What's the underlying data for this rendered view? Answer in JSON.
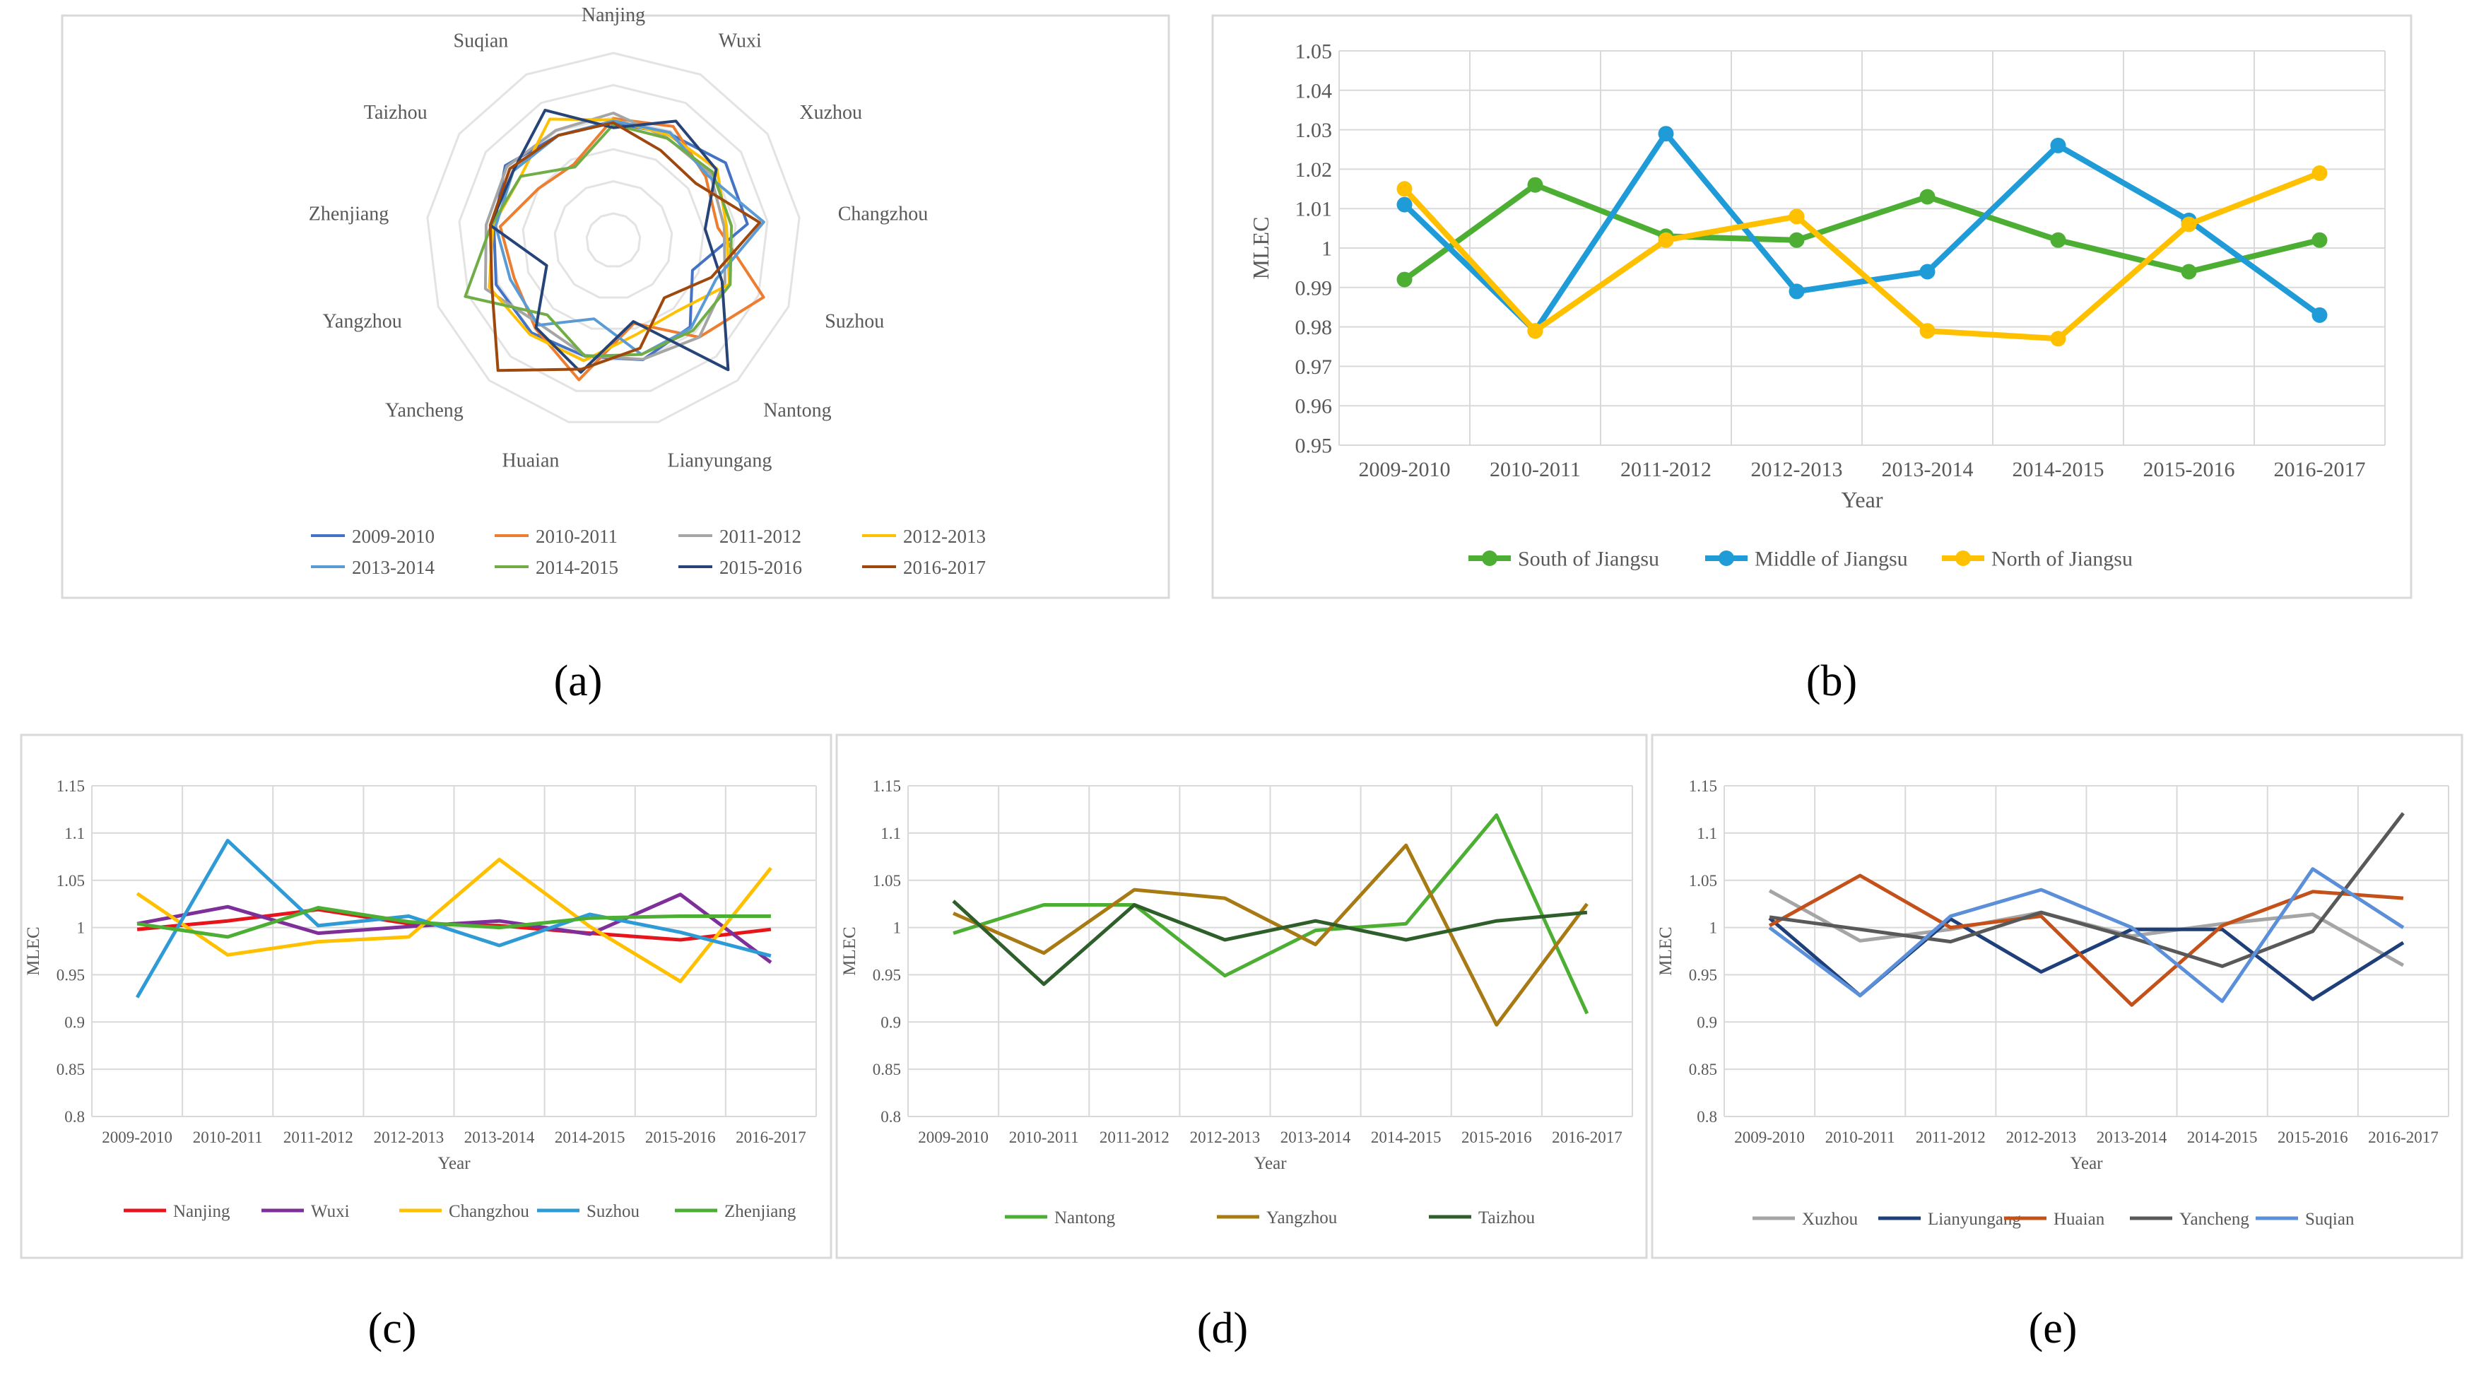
{
  "panel_labels": [
    "(a)",
    "(b)",
    "(c)",
    "(d)",
    "(e)"
  ],
  "chart_data": [
    {
      "panel": "(a)",
      "type": "radar",
      "axes": [
        "Nanjing",
        "Wuxi",
        "Xuzhou",
        "Changzhou",
        "Suzhou",
        "Nantong",
        "Lianyungang",
        "Huaian",
        "Yancheng",
        "Yangzhou",
        "Zhenjiang",
        "Taizhou",
        "Suqian"
      ],
      "rlim": [
        0.8,
        1.15
      ],
      "grid": true,
      "legend_position": "bottom",
      "series": [
        {
          "name": "2009-2010",
          "color": "#4472C4",
          "values": [
            0.998,
            1.004,
            1.039,
            1.036,
            0.926,
            0.994,
            1.01,
            1.002,
            1.011,
            1.015,
            1.004,
            1.028,
            1.0
          ]
        },
        {
          "name": "2010-2011",
          "color": "#ED7D31",
          "values": [
            1.007,
            1.022,
            0.986,
            0.971,
            1.092,
            1.024,
            0.928,
            1.055,
            0.998,
            0.973,
            0.99,
            0.94,
            0.928
          ]
        },
        {
          "name": "2011-2012",
          "color": "#A5A5A5",
          "values": [
            1.019,
            0.994,
            0.998,
            0.985,
            1.002,
            1.024,
            1.009,
            1.0,
            0.985,
            1.04,
            1.021,
            1.024,
            1.012
          ]
        },
        {
          "name": "2012-2013",
          "color": "#FFC000",
          "values": [
            1.004,
            1.001,
            1.016,
            0.99,
            1.012,
            0.949,
            0.953,
            1.012,
            1.016,
            1.031,
            1.006,
            0.987,
            1.04
          ]
        },
        {
          "name": "2013-2014",
          "color": "#5B9BD5",
          "values": [
            1.002,
            1.007,
            0.991,
            1.072,
            0.981,
            0.997,
            0.998,
            0.918,
            0.989,
            0.982,
            1.0,
            1.007,
            1.0
          ]
        },
        {
          "name": "2014-2015",
          "color": "#70AD47",
          "values": [
            0.994,
            0.993,
            1.004,
            1.001,
            1.014,
            1.004,
            0.998,
            1.002,
            0.959,
            1.087,
            1.01,
            0.987,
            0.922
          ]
        },
        {
          "name": "2015-2016",
          "color": "#264478",
          "values": [
            0.987,
            1.035,
            1.014,
            0.943,
            0.995,
            1.119,
            0.924,
            1.038,
            0.996,
            0.897,
            1.012,
            1.007,
            1.062
          ]
        },
        {
          "name": "2016-2017",
          "color": "#9E480E",
          "values": [
            0.998,
            0.963,
            0.96,
            1.063,
            0.97,
            0.909,
            0.984,
            1.031,
            1.121,
            1.025,
            1.012,
            1.016,
            1.0
          ]
        }
      ]
    },
    {
      "panel": "(b)",
      "type": "line",
      "categories": [
        "2009-2010",
        "2010-2011",
        "2011-2012",
        "2012-2013",
        "2013-2014",
        "2014-2015",
        "2015-2016",
        "2016-2017"
      ],
      "xlabel": "Year",
      "ylabel": "MLEC",
      "ylim": [
        0.95,
        1.05
      ],
      "yticks": [
        "0.95",
        "0.96",
        "0.97",
        "0.98",
        "0.99",
        "1",
        "1.01",
        "1.02",
        "1.03",
        "1.04",
        "1.05"
      ],
      "grid": true,
      "legend_position": "bottom",
      "series": [
        {
          "name": "South of Jiangsu",
          "color": "#4CAF34",
          "values": [
            0.992,
            1.016,
            1.003,
            1.002,
            1.013,
            1.002,
            0.994,
            1.002
          ]
        },
        {
          "name": "Middle of Jiangsu",
          "color": "#1F9BD8",
          "values": [
            1.011,
            0.979,
            1.029,
            0.989,
            0.994,
            1.026,
            1.007,
            0.983
          ]
        },
        {
          "name": "North of Jiangsu",
          "color": "#FFC000",
          "values": [
            1.015,
            0.979,
            1.002,
            1.008,
            0.979,
            0.977,
            1.006,
            1.019
          ]
        }
      ]
    },
    {
      "panel": "(c)",
      "type": "line",
      "categories": [
        "2009-2010",
        "2010-2011",
        "2011-2012",
        "2012-2013",
        "2013-2014",
        "2014-2015",
        "2015-2016",
        "2016-2017"
      ],
      "xlabel": "Year",
      "ylabel": "MLEC",
      "ylim": [
        0.8,
        1.15
      ],
      "yticks": [
        "0.8",
        "0.85",
        "0.9",
        "0.95",
        "1",
        "1.05",
        "1.1",
        "1.15"
      ],
      "grid": true,
      "legend_position": "bottom",
      "series": [
        {
          "name": "Nanjing",
          "color": "#E8141B",
          "values": [
            0.998,
            1.007,
            1.019,
            1.004,
            1.002,
            0.994,
            0.987,
            0.998
          ]
        },
        {
          "name": "Wuxi",
          "color": "#7E2F99",
          "values": [
            1.004,
            1.022,
            0.994,
            1.001,
            1.007,
            0.993,
            1.035,
            0.963
          ]
        },
        {
          "name": "Changzhou",
          "color": "#FFC000",
          "values": [
            1.036,
            0.971,
            0.985,
            0.99,
            1.072,
            1.001,
            0.943,
            1.063
          ]
        },
        {
          "name": "Suzhou",
          "color": "#2F9BD6",
          "values": [
            0.926,
            1.092,
            1.002,
            1.012,
            0.981,
            1.014,
            0.995,
            0.97
          ]
        },
        {
          "name": "Zhenjiang",
          "color": "#4CAF34",
          "values": [
            1.004,
            0.99,
            1.021,
            1.006,
            1.0,
            1.01,
            1.012,
            1.012
          ]
        }
      ]
    },
    {
      "panel": "(d)",
      "type": "line",
      "categories": [
        "2009-2010",
        "2010-2011",
        "2011-2012",
        "2012-2013",
        "2013-2014",
        "2014-2015",
        "2015-2016",
        "2016-2017"
      ],
      "xlabel": "Year",
      "ylabel": "MLEC",
      "ylim": [
        0.8,
        1.15
      ],
      "yticks": [
        "0.8",
        "0.85",
        "0.9",
        "0.95",
        "1",
        "1.05",
        "1.1",
        "1.15"
      ],
      "grid": true,
      "legend_position": "bottom",
      "series": [
        {
          "name": "Nantong",
          "color": "#4CAF34",
          "values": [
            0.994,
            1.024,
            1.024,
            0.949,
            0.997,
            1.004,
            1.119,
            0.909
          ]
        },
        {
          "name": "Yangzhou",
          "color": "#A87A14",
          "values": [
            1.015,
            0.973,
            1.04,
            1.031,
            0.982,
            1.087,
            0.897,
            1.025
          ]
        },
        {
          "name": "Taizhou",
          "color": "#2E5F2A",
          "values": [
            1.028,
            0.94,
            1.024,
            0.987,
            1.007,
            0.987,
            1.007,
            1.016
          ]
        }
      ]
    },
    {
      "panel": "(e)",
      "type": "line",
      "categories": [
        "2009-2010",
        "2010-2011",
        "2011-2012",
        "2012-2013",
        "2013-2014",
        "2014-2015",
        "2015-2016",
        "2016-2017"
      ],
      "xlabel": "Year",
      "ylabel": "MLEC",
      "ylim": [
        0.8,
        1.15
      ],
      "yticks": [
        "0.8",
        "0.85",
        "0.9",
        "0.95",
        "1",
        "1.05",
        "1.1",
        "1.15"
      ],
      "grid": true,
      "legend_position": "bottom",
      "series": [
        {
          "name": "Xuzhou",
          "color": "#A5A5A5",
          "values": [
            1.039,
            0.986,
            0.998,
            1.016,
            0.991,
            1.004,
            1.014,
            0.96
          ]
        },
        {
          "name": "Lianyungang",
          "color": "#1F3F7A",
          "values": [
            1.01,
            0.928,
            1.009,
            0.953,
            0.998,
            0.998,
            0.924,
            0.984
          ]
        },
        {
          "name": "Huaian",
          "color": "#C4511A",
          "values": [
            1.002,
            1.055,
            1.0,
            1.012,
            0.918,
            1.002,
            1.038,
            1.031
          ]
        },
        {
          "name": "Yancheng",
          "color": "#595959",
          "values": [
            1.011,
            0.998,
            0.985,
            1.016,
            0.989,
            0.959,
            0.996,
            1.121
          ]
        },
        {
          "name": "Suqian",
          "color": "#5B8FD9",
          "values": [
            1.0,
            0.928,
            1.012,
            1.04,
            1.0,
            0.922,
            1.062,
            1.0
          ]
        }
      ]
    }
  ]
}
